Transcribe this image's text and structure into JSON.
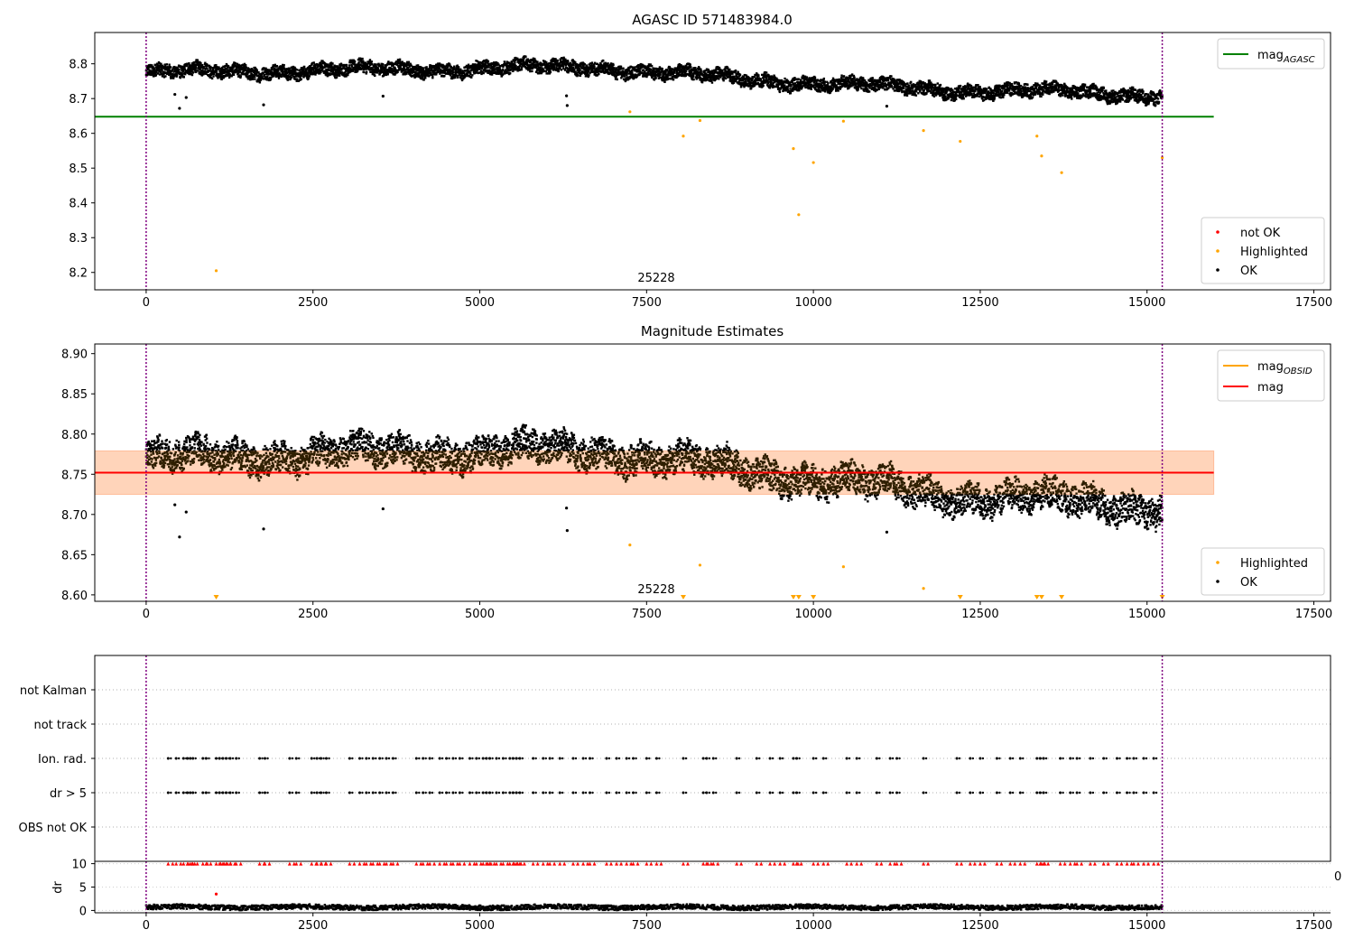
{
  "chart_data": [
    {
      "type": "scatter",
      "title": "AGASC ID 571483984.0",
      "xlim": [
        -770,
        17750
      ],
      "ylim": [
        8.15,
        8.89
      ],
      "xticks": [
        0,
        2500,
        5000,
        7500,
        10000,
        12500,
        15000,
        17500
      ],
      "yticks": [
        8.2,
        8.3,
        8.4,
        8.5,
        8.6,
        8.7,
        8.8
      ],
      "tick_format": ".1",
      "annotation": "25228",
      "vlines": [
        0,
        15228
      ],
      "hlines": [
        {
          "name": "mag_AGASC",
          "y": 8.648,
          "color": "#008000"
        }
      ],
      "legend_lines": [
        {
          "label": "mag",
          "sub": "AGASC",
          "color": "#008000"
        }
      ],
      "legend_points": [
        {
          "label": "not OK",
          "color": "#ff0000"
        },
        {
          "label": "Highlighted",
          "color": "#ffa500"
        },
        {
          "label": "OK",
          "color": "#000000"
        }
      ],
      "series": [
        {
          "name": "OK",
          "color": "#000000",
          "trend": [
            [
              0,
              8.775
            ],
            [
              4200,
              8.785
            ],
            [
              6800,
              8.79
            ],
            [
              8000,
              8.77
            ],
            [
              9000,
              8.755
            ],
            [
              10500,
              8.74
            ],
            [
              12000,
              8.725
            ],
            [
              13500,
              8.72
            ],
            [
              15200,
              8.71
            ]
          ],
          "band_width": 0.05
        },
        {
          "name": "OK outliers",
          "color": "#000000",
          "points": [
            [
              430,
              8.712
            ],
            [
              500,
              8.672
            ],
            [
              600,
              8.703
            ],
            [
              1760,
              8.682
            ],
            [
              3550,
              8.707
            ],
            [
              6300,
              8.708
            ],
            [
              6310,
              8.68
            ],
            [
              11100,
              8.678
            ]
          ]
        },
        {
          "name": "Highlighted",
          "color": "#ffa500",
          "points": [
            [
              1050,
              8.205
            ],
            [
              7250,
              8.662
            ],
            [
              8050,
              8.592
            ],
            [
              8300,
              8.637
            ],
            [
              9700,
              8.556
            ],
            [
              9780,
              8.366
            ],
            [
              10000,
              8.516
            ],
            [
              10450,
              8.635
            ],
            [
              11650,
              8.608
            ],
            [
              12200,
              8.577
            ],
            [
              13350,
              8.592
            ],
            [
              13420,
              8.535
            ],
            [
              13720,
              8.487
            ],
            [
              15228,
              8.53
            ]
          ]
        }
      ]
    },
    {
      "type": "scatter",
      "title": "Magnitude Estimates",
      "xlim": [
        -770,
        17750
      ],
      "ylim": [
        8.592,
        8.912
      ],
      "xticks": [
        0,
        2500,
        5000,
        7500,
        10000,
        12500,
        15000,
        17500
      ],
      "yticks": [
        8.6,
        8.65,
        8.7,
        8.75,
        8.8,
        8.85,
        8.9
      ],
      "tick_format": ".2",
      "annotation": "25228",
      "vlines": [
        0,
        15228
      ],
      "band": {
        "x": [
          -770,
          16000
        ],
        "y": [
          8.725,
          8.779
        ]
      },
      "hlines": [
        {
          "name": "mag",
          "y": 8.752,
          "color": "#ff0000"
        }
      ],
      "legend_lines": [
        {
          "label": "mag",
          "sub": "OBSID",
          "color": "#ffa500"
        },
        {
          "label": "mag",
          "sub": "",
          "color": "#ff0000"
        }
      ],
      "legend_points": [
        {
          "label": "Highlighted",
          "color": "#ffa500"
        },
        {
          "label": "OK",
          "color": "#000000"
        }
      ],
      "series": [
        {
          "name": "OK",
          "color": "#000000",
          "trend": [
            [
              0,
              8.77
            ],
            [
              4200,
              8.778
            ],
            [
              6800,
              8.78
            ],
            [
              8000,
              8.765
            ],
            [
              9000,
              8.755
            ],
            [
              10500,
              8.74
            ],
            [
              12000,
              8.725
            ],
            [
              13500,
              8.718
            ],
            [
              15200,
              8.71
            ]
          ],
          "band_width": 0.05
        },
        {
          "name": "OK outliers",
          "color": "#000000",
          "points": [
            [
              430,
              8.712
            ],
            [
              500,
              8.672
            ],
            [
              600,
              8.703
            ],
            [
              1760,
              8.682
            ],
            [
              3550,
              8.707
            ],
            [
              6300,
              8.708
            ],
            [
              6310,
              8.68
            ],
            [
              11100,
              8.678
            ]
          ]
        },
        {
          "name": "Highlighted",
          "color": "#ffa500",
          "points": [
            [
              7250,
              8.662
            ],
            [
              8300,
              8.637
            ],
            [
              10450,
              8.635
            ],
            [
              11650,
              8.608
            ]
          ]
        },
        {
          "name": "Highlighted (below range)",
          "color": "#ffa500",
          "marker": "triangle-down",
          "x": [
            1050,
            8050,
            9700,
            9780,
            10000,
            12200,
            13350,
            13420,
            13720,
            15228
          ]
        }
      ]
    },
    {
      "type": "scatter",
      "xlim": [
        -770,
        17750
      ],
      "vlines": [
        0,
        15228
      ],
      "categories": [
        "OBS not OK",
        "dr > 5",
        "Ion. rad.",
        "not Kalman",
        "not track"
      ],
      "category_order_bottom_to_top": [
        "OBS not OK",
        "dr > 5",
        "Ion. rad.",
        "not track",
        "not Kalman"
      ],
      "flag_series": [
        {
          "category": "Ion. rad.",
          "color": "#000000",
          "x": [
            330,
            450,
            560,
            620,
            660,
            700,
            850,
            900,
            1050,
            1100,
            1150,
            1200,
            1260,
            1350,
            1700,
            1780,
            2150,
            2250,
            2480,
            2560,
            2620,
            2700,
            3050,
            3200,
            3300,
            3400,
            3500,
            3600,
            3700,
            4050,
            4150,
            4250,
            4400,
            4500,
            4600,
            4700,
            4850,
            4950,
            5050,
            5100,
            5150,
            5250,
            5350,
            5450,
            5500,
            5550,
            5600,
            5800,
            5950,
            6050,
            6200,
            6400,
            6550,
            6650,
            6900,
            7050,
            7200,
            7300,
            7500,
            7650,
            8050,
            8350,
            8400,
            8500,
            8850,
            9150,
            9350,
            9500,
            9700,
            9750,
            10000,
            10150,
            10500,
            10650,
            10950,
            11150,
            11250,
            11650,
            12150,
            12350,
            12500,
            12750,
            12950,
            13100,
            13350,
            13400,
            13450,
            13700,
            13850,
            13950,
            14150,
            14350,
            14550,
            14700,
            14800,
            14950,
            15100
          ]
        },
        {
          "category": "dr > 5",
          "color": "#000000",
          "x": [
            330,
            450,
            560,
            620,
            660,
            700,
            850,
            900,
            1050,
            1100,
            1150,
            1200,
            1260,
            1350,
            1700,
            1780,
            2150,
            2250,
            2480,
            2560,
            2620,
            2700,
            3050,
            3200,
            3300,
            3400,
            3500,
            3600,
            3700,
            4050,
            4150,
            4250,
            4400,
            4500,
            4600,
            4700,
            4850,
            4950,
            5050,
            5100,
            5150,
            5250,
            5350,
            5450,
            5500,
            5550,
            5600,
            5800,
            5950,
            6050,
            6200,
            6400,
            6550,
            6650,
            6900,
            7050,
            7200,
            7300,
            7500,
            7650,
            8050,
            8350,
            8400,
            8500,
            8850,
            9150,
            9350,
            9500,
            9700,
            9750,
            10000,
            10150,
            10500,
            10650,
            10950,
            11150,
            11250,
            11650,
            12150,
            12350,
            12500,
            12750,
            12950,
            13100,
            13350,
            13400,
            13450,
            13700,
            13850,
            13950,
            14150,
            14350,
            14550,
            14700,
            14800,
            14950,
            15100
          ]
        }
      ]
    },
    {
      "type": "scatter",
      "ylabel": "dr",
      "xlim": [
        -770,
        17750
      ],
      "ylim": [
        -0.5,
        10.5
      ],
      "yticks": [
        0,
        5,
        10
      ],
      "xticks": [
        0,
        2500,
        5000,
        7500,
        10000,
        12500,
        15000,
        17500
      ],
      "vlines": [
        0,
        15228
      ],
      "series": [
        {
          "name": "dr",
          "color": "#000000",
          "trend": [
            [
              0,
              0.7
            ],
            [
              15228,
              0.7
            ]
          ],
          "band_width": 1.0
        },
        {
          "name": "dr clipped",
          "color": "#ff0000",
          "marker": "triangle-up",
          "y": 10,
          "x": [
            330,
            450,
            560,
            620,
            660,
            700,
            850,
            900,
            1050,
            1100,
            1150,
            1200,
            1260,
            1350,
            1700,
            1780,
            2150,
            2250,
            2480,
            2560,
            2620,
            2700,
            3050,
            3200,
            3300,
            3400,
            3500,
            3600,
            3700,
            4050,
            4150,
            4250,
            4400,
            4500,
            4600,
            4700,
            4850,
            4950,
            5050,
            5100,
            5150,
            5250,
            5350,
            5450,
            5500,
            5550,
            5600,
            5800,
            5950,
            6050,
            6200,
            6400,
            6550,
            6650,
            6900,
            7050,
            7200,
            7300,
            7500,
            7650,
            8050,
            8350,
            8400,
            8500,
            8850,
            9150,
            9350,
            9500,
            9700,
            9750,
            10000,
            10150,
            10500,
            10650,
            10950,
            11150,
            11250,
            11650,
            12150,
            12350,
            12500,
            12750,
            12950,
            13100,
            13350,
            13400,
            13450,
            13700,
            13850,
            13950,
            14150,
            14350,
            14550,
            14700,
            14800,
            14950,
            15100
          ]
        },
        {
          "name": "dr outlier",
          "color": "#ff0000",
          "points": [
            [
              1050,
              3.5
            ]
          ]
        }
      ],
      "stray_label": "0"
    }
  ]
}
